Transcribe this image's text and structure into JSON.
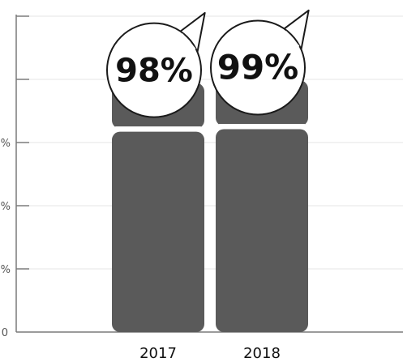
{
  "chart_data": {
    "type": "bar",
    "categories": [
      "2017",
      "2018"
    ],
    "values": [
      98,
      99
    ],
    "value_labels": [
      "98%",
      "99%"
    ],
    "y_ticks": [
      "%",
      "%",
      "%",
      "0"
    ],
    "title": "",
    "xlabel": "",
    "ylabel": "",
    "ylim": [
      0,
      125
    ],
    "grid": true,
    "legend": "none",
    "colors": {
      "bar": "#5a5a5a",
      "grid": "#e6e6e6",
      "axis": "#7a7a7a",
      "bubble_fill": "#ffffff",
      "bubble_stroke": "#1a1a1a"
    }
  }
}
